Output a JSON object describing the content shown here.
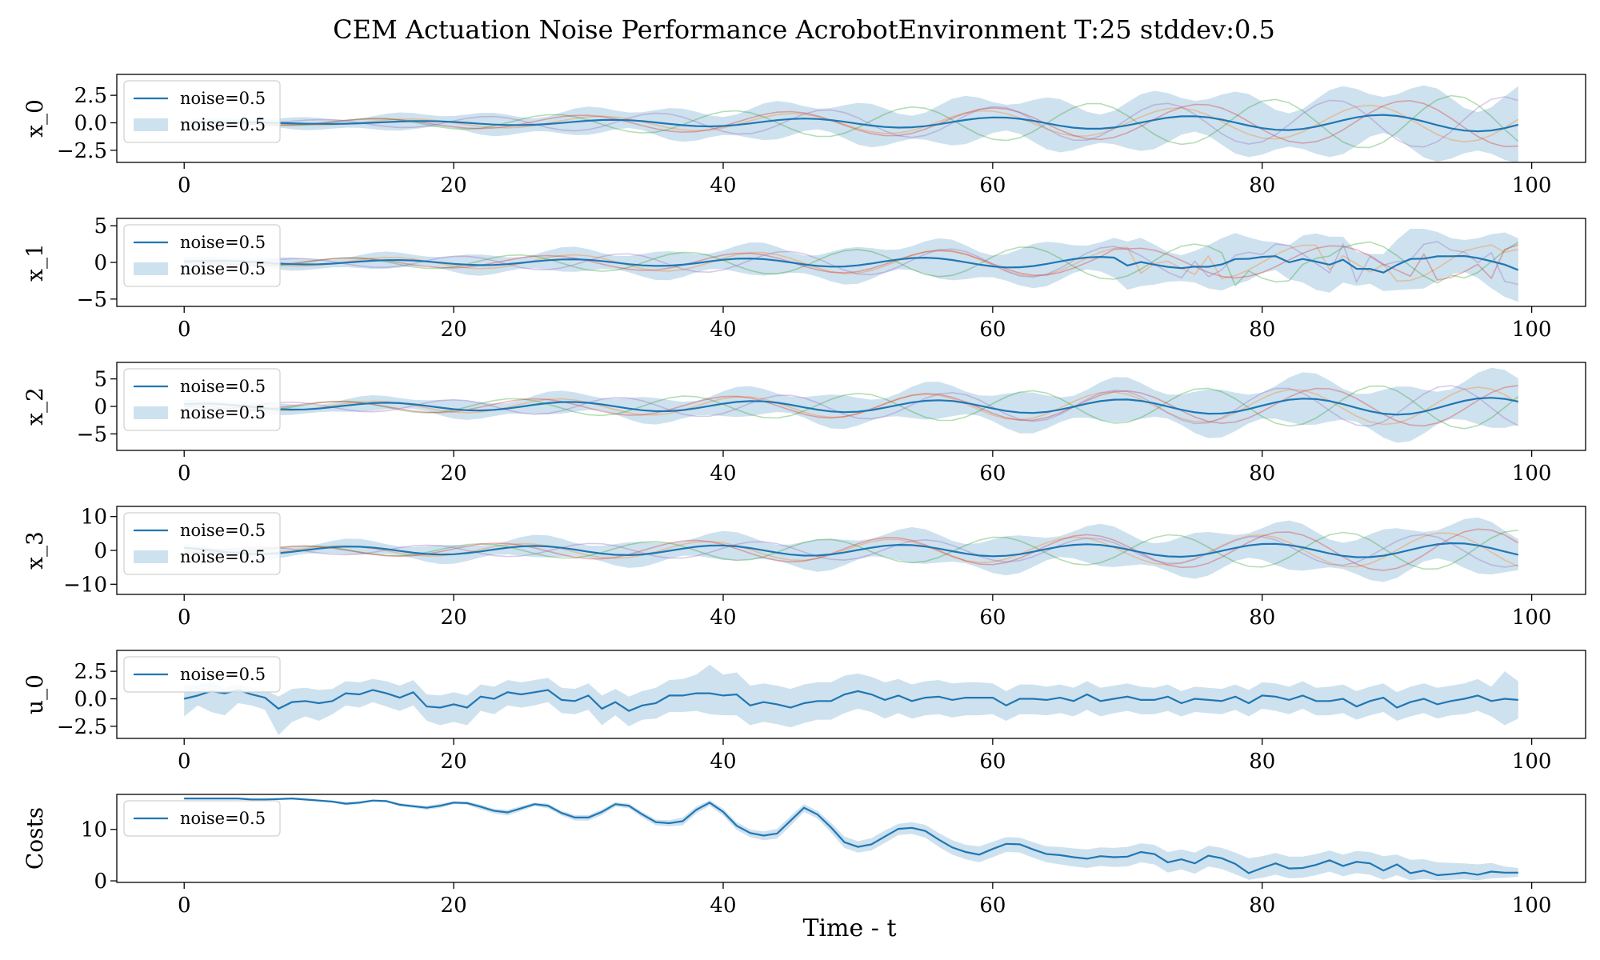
{
  "chart_data": {
    "title": "CEM Actuation Noise Performance AcrobotEnvironment T:25 stddev:0.5",
    "xlabel": "Time - t",
    "xlim": [
      -5,
      104
    ],
    "xticks": [
      0,
      20,
      40,
      60,
      80,
      100
    ],
    "band_color": "#a6c8e0",
    "mean_color": "#1f77b4",
    "panels": [
      {
        "type": "line",
        "ylabel": "x_0",
        "ylim": [
          -3.6,
          4.4
        ],
        "yticks": [
          2.5,
          0.0,
          -2.5
        ],
        "ytick_labels": [
          "2.5",
          "0.0",
          "−2.5"
        ],
        "legend": {
          "line": "noise=0.5",
          "band": "noise=0.5"
        },
        "mean_amp": [
          0.02,
          0.8
        ],
        "mean_freq": 0.44,
        "mean_phase": 0.2,
        "band_width": [
          0.3,
          3.6
        ],
        "traces": [
          {
            "color": "#ff7f0e",
            "amp": [
              0.05,
              1.8
            ],
            "freq": 0.44,
            "phase": 0.6
          },
          {
            "color": "#2ca02c",
            "amp": [
              0.05,
              2.6
            ],
            "freq": 0.47,
            "phase": 1.3
          },
          {
            "color": "#d62728",
            "amp": [
              0.05,
              2.2
            ],
            "freq": 0.41,
            "phase": 2.1
          },
          {
            "color": "#9467bd",
            "amp": [
              0.05,
              2.4
            ],
            "freq": 0.5,
            "phase": 2.9
          }
        ]
      },
      {
        "type": "line",
        "ylabel": "x_1",
        "ylim": [
          -6,
          6
        ],
        "yticks": [
          5,
          0,
          -5
        ],
        "ytick_labels": [
          "5",
          "0",
          "−5"
        ],
        "legend": {
          "line": "noise=0.5",
          "band": "noise=0.5"
        },
        "mean_amp": [
          0.2,
          1.0
        ],
        "mean_freq": 0.48,
        "mean_phase": 0.4,
        "band_width": [
          0.6,
          4.5
        ],
        "jagged_after": 68,
        "traces": [
          {
            "color": "#ff7f0e",
            "amp": [
              0.3,
              2.8
            ],
            "freq": 0.46,
            "phase": 0.9
          },
          {
            "color": "#2ca02c",
            "amp": [
              0.3,
              3.2
            ],
            "freq": 0.5,
            "phase": 1.8
          },
          {
            "color": "#d62728",
            "amp": [
              0.3,
              2.6
            ],
            "freq": 0.43,
            "phase": 2.6
          },
          {
            "color": "#9467bd",
            "amp": [
              0.3,
              3.0
            ],
            "freq": 0.52,
            "phase": 3.5
          }
        ]
      },
      {
        "type": "line",
        "ylabel": "x_2",
        "ylim": [
          -8,
          8
        ],
        "yticks": [
          5,
          0,
          -5
        ],
        "ytick_labels": [
          "5",
          "0",
          "−5"
        ],
        "legend": {
          "line": "noise=0.5",
          "band": "noise=0.5"
        },
        "mean_amp": [
          0.5,
          1.6
        ],
        "mean_freq": 0.46,
        "mean_phase": 1.0,
        "band_width": [
          0.8,
          5.6
        ],
        "traces": [
          {
            "color": "#ff7f0e",
            "amp": [
              0.5,
              3.6
            ],
            "freq": 0.46,
            "phase": 1.4
          },
          {
            "color": "#2ca02c",
            "amp": [
              0.5,
              4.2
            ],
            "freq": 0.49,
            "phase": 2.2
          },
          {
            "color": "#d62728",
            "amp": [
              0.5,
              3.8
            ],
            "freq": 0.43,
            "phase": 3.0
          },
          {
            "color": "#9467bd",
            "amp": [
              0.5,
              4.0
            ],
            "freq": 0.51,
            "phase": 4.0
          }
        ]
      },
      {
        "type": "line",
        "ylabel": "x_3",
        "ylim": [
          -13,
          13
        ],
        "yticks": [
          10,
          0,
          -10
        ],
        "ytick_labels": [
          "10",
          "0",
          "−10"
        ],
        "legend": {
          "line": "noise=0.5",
          "band": "noise=0.5"
        },
        "mean_amp": [
          1.0,
          2.2
        ],
        "mean_freq": 0.46,
        "mean_phase": 2.2,
        "band_width": [
          1.5,
          8.5
        ],
        "traces": [
          {
            "color": "#ff7f0e",
            "amp": [
              0.8,
              5.5
            ],
            "freq": 0.46,
            "phase": 2.6
          },
          {
            "color": "#2ca02c",
            "amp": [
              0.8,
              6.0
            ],
            "freq": 0.49,
            "phase": 3.4
          },
          {
            "color": "#d62728",
            "amp": [
              0.8,
              6.5
            ],
            "freq": 0.43,
            "phase": 4.2
          },
          {
            "color": "#9467bd",
            "amp": [
              0.8,
              5.0
            ],
            "freq": 0.51,
            "phase": 5.0
          }
        ]
      },
      {
        "type": "line",
        "ylabel": "u_0",
        "ylim": [
          -3.6,
          4.4
        ],
        "yticks": [
          2.5,
          0.0,
          -2.5
        ],
        "ytick_labels": [
          "2.5",
          "0.0",
          "−2.5"
        ],
        "legend": {
          "line": "noise=0.5"
        },
        "x": [
          0,
          1,
          2,
          3,
          4,
          5,
          6,
          7,
          8,
          9,
          10,
          11,
          12,
          13,
          14,
          15,
          16,
          17,
          18,
          19,
          20,
          21,
          22,
          23,
          24,
          25,
          26,
          27,
          28,
          29,
          30,
          31,
          32,
          33,
          34,
          35,
          36,
          37,
          38,
          39,
          40,
          41,
          42,
          43,
          44,
          45,
          46,
          47,
          48,
          49,
          50,
          51,
          52,
          53,
          54,
          55,
          56,
          57,
          58,
          59,
          60,
          61,
          62,
          63,
          64,
          65,
          66,
          67,
          68,
          69,
          70,
          71,
          72,
          73,
          74,
          75,
          76,
          77,
          78,
          79,
          80,
          81,
          82,
          83,
          84,
          85,
          86,
          87,
          88,
          89,
          90,
          91,
          92,
          93,
          94,
          95,
          96,
          97,
          98,
          99
        ],
        "mean": [
          0.0,
          0.3,
          0.7,
          0.5,
          0.8,
          0.4,
          0.1,
          -0.9,
          -0.3,
          -0.2,
          -0.4,
          -0.2,
          0.5,
          0.4,
          0.8,
          0.5,
          0.1,
          0.6,
          -0.7,
          -0.8,
          -0.5,
          -0.8,
          0.2,
          0.0,
          0.6,
          0.4,
          0.6,
          0.8,
          -0.1,
          -0.2,
          0.3,
          -0.9,
          -0.3,
          -1.1,
          -0.6,
          -0.4,
          0.3,
          0.3,
          0.5,
          0.5,
          0.3,
          0.4,
          -0.6,
          -0.3,
          -0.5,
          -0.8,
          -0.4,
          -0.2,
          -0.2,
          0.4,
          0.7,
          0.4,
          -0.1,
          0.3,
          -0.2,
          0.1,
          0.2,
          -0.1,
          0.1,
          0.1,
          0.1,
          -0.6,
          0.0,
          0.0,
          -0.1,
          0.1,
          -0.2,
          0.4,
          -0.2,
          0.0,
          0.2,
          -0.1,
          -0.1,
          0.2,
          -0.4,
          0.0,
          -0.1,
          -0.2,
          0.2,
          -0.4,
          0.3,
          0.2,
          -0.1,
          0.3,
          -0.2,
          -0.2,
          0.0,
          -0.7,
          -0.2,
          0.1,
          -0.8,
          -0.3,
          0.0,
          -0.5,
          -0.2,
          0.0,
          0.3,
          -0.2,
          0.0,
          -0.1
        ],
        "upper": [
          1.2,
          1.3,
          1.5,
          1.0,
          1.3,
          1.0,
          0.8,
          0.2,
          0.9,
          1.0,
          0.8,
          0.9,
          1.6,
          1.5,
          1.8,
          1.6,
          1.2,
          1.7,
          0.4,
          0.3,
          0.6,
          0.3,
          1.3,
          1.1,
          1.7,
          1.5,
          1.7,
          1.9,
          1.0,
          0.9,
          1.4,
          0.3,
          0.9,
          0.2,
          0.7,
          1.0,
          1.7,
          1.8,
          2.2,
          3.1,
          2.2,
          2.4,
          1.2,
          1.4,
          1.2,
          0.9,
          1.3,
          1.5,
          1.5,
          2.1,
          2.3,
          2.0,
          1.5,
          1.8,
          1.3,
          1.6,
          1.7,
          1.4,
          1.5,
          1.5,
          1.4,
          0.7,
          1.3,
          1.3,
          1.1,
          1.3,
          1.0,
          1.6,
          1.0,
          1.2,
          1.4,
          1.1,
          1.0,
          1.3,
          0.7,
          1.1,
          1.0,
          0.9,
          1.3,
          0.8,
          1.5,
          1.4,
          1.1,
          1.6,
          1.0,
          1.1,
          1.3,
          0.7,
          1.1,
          1.4,
          0.6,
          1.1,
          1.4,
          1.0,
          1.2,
          1.4,
          1.8,
          1.1,
          2.5,
          1.6
        ],
        "lower": [
          -1.6,
          -0.6,
          -1.2,
          -1.5,
          -0.4,
          -0.6,
          -1.0,
          -3.3,
          -2.1,
          -1.6,
          -2.0,
          -1.4,
          -0.6,
          -0.8,
          -0.3,
          -0.7,
          -1.1,
          -0.6,
          -2.0,
          -2.4,
          -2.1,
          -2.4,
          -1.1,
          -1.4,
          -0.6,
          -0.8,
          -0.6,
          -0.3,
          -1.3,
          -1.4,
          -1.0,
          -2.4,
          -1.5,
          -2.5,
          -1.9,
          -1.8,
          -1.2,
          -1.2,
          -1.1,
          -1.4,
          -1.5,
          -1.5,
          -2.4,
          -2.1,
          -2.3,
          -2.6,
          -2.2,
          -1.9,
          -1.9,
          -1.3,
          -0.9,
          -1.2,
          -1.8,
          -1.3,
          -1.8,
          -1.5,
          -1.4,
          -1.7,
          -1.5,
          -1.5,
          -1.4,
          -2.0,
          -1.4,
          -1.4,
          -1.5,
          -1.3,
          -1.6,
          -1.0,
          -1.6,
          -1.3,
          -1.1,
          -1.4,
          -1.4,
          -1.1,
          -1.6,
          -1.2,
          -1.3,
          -1.4,
          -1.0,
          -1.6,
          -0.9,
          -1.1,
          -1.4,
          -0.9,
          -1.5,
          -1.5,
          -1.3,
          -1.9,
          -1.5,
          -1.2,
          -2.0,
          -1.6,
          -1.3,
          -1.8,
          -1.5,
          -1.4,
          -1.1,
          -1.6,
          -2.4,
          -1.8
        ]
      },
      {
        "type": "line",
        "ylabel": "Costs",
        "ylim": [
          -0.3,
          16.8
        ],
        "yticks": [
          10,
          0
        ],
        "ytick_labels": [
          "10",
          "0"
        ],
        "legend": {
          "line": "noise=0.5"
        },
        "x": [
          0,
          1,
          2,
          3,
          4,
          5,
          6,
          7,
          8,
          9,
          10,
          11,
          12,
          13,
          14,
          15,
          16,
          17,
          18,
          19,
          20,
          21,
          22,
          23,
          24,
          25,
          26,
          27,
          28,
          29,
          30,
          31,
          32,
          33,
          34,
          35,
          36,
          37,
          38,
          39,
          40,
          41,
          42,
          43,
          44,
          45,
          46,
          47,
          48,
          49,
          50,
          51,
          52,
          53,
          54,
          55,
          56,
          57,
          58,
          59,
          60,
          61,
          62,
          63,
          64,
          65,
          66,
          67,
          68,
          69,
          70,
          71,
          72,
          73,
          74,
          75,
          76,
          77,
          78,
          79,
          80,
          81,
          82,
          83,
          84,
          85,
          86,
          87,
          88,
          89,
          90,
          91,
          92,
          93,
          94,
          95,
          96,
          97,
          98,
          99
        ],
        "mean": [
          16.0,
          16.0,
          16.0,
          16.0,
          16.0,
          15.8,
          15.8,
          15.9,
          16.0,
          15.8,
          15.6,
          15.4,
          15.0,
          15.2,
          15.6,
          15.5,
          14.8,
          14.5,
          14.2,
          14.6,
          15.2,
          15.1,
          14.4,
          13.6,
          13.3,
          14.1,
          14.9,
          14.6,
          13.2,
          12.3,
          12.3,
          13.4,
          14.9,
          14.6,
          12.9,
          11.4,
          11.2,
          11.6,
          13.8,
          15.2,
          13.4,
          10.7,
          9.3,
          8.8,
          9.2,
          11.7,
          14.2,
          12.9,
          10.4,
          7.5,
          6.6,
          7.1,
          8.6,
          10.1,
          10.3,
          9.7,
          8.0,
          6.5,
          5.6,
          5.1,
          6.2,
          7.2,
          7.1,
          6.1,
          5.2,
          5.0,
          4.6,
          4.3,
          4.8,
          4.6,
          4.7,
          5.6,
          5.2,
          3.6,
          4.2,
          3.4,
          4.9,
          4.4,
          3.3,
          1.5,
          2.5,
          3.4,
          2.4,
          2.5,
          3.1,
          4.0,
          2.9,
          3.7,
          3.4,
          2.0,
          3.2,
          1.5,
          2.0,
          1.1,
          1.3,
          1.6,
          1.2,
          1.8,
          1.6,
          1.6
        ],
        "upper": [
          16.2,
          16.2,
          16.2,
          16.2,
          16.2,
          16.0,
          16.0,
          16.1,
          16.2,
          16.0,
          15.8,
          15.6,
          15.3,
          15.5,
          15.8,
          15.7,
          15.1,
          14.8,
          14.6,
          15.0,
          15.5,
          15.4,
          14.8,
          14.0,
          13.8,
          14.5,
          15.2,
          15.0,
          13.6,
          12.8,
          12.8,
          13.9,
          15.3,
          15.0,
          13.4,
          11.9,
          11.8,
          12.3,
          14.4,
          15.7,
          14.0,
          11.4,
          10.0,
          9.6,
          10.1,
          12.6,
          14.9,
          13.6,
          11.3,
          8.6,
          7.7,
          8.3,
          9.8,
          11.1,
          11.4,
          10.9,
          9.3,
          7.9,
          7.0,
          6.7,
          7.6,
          8.5,
          8.4,
          7.5,
          6.7,
          6.6,
          6.3,
          6.1,
          6.5,
          6.4,
          6.6,
          7.3,
          7.0,
          5.6,
          6.1,
          5.5,
          6.8,
          6.4,
          5.5,
          4.4,
          4.8,
          5.4,
          4.7,
          4.7,
          5.2,
          5.9,
          5.1,
          5.8,
          5.6,
          4.8,
          5.1,
          4.1,
          4.2,
          3.6,
          3.5,
          3.4,
          3.2,
          3.5,
          2.8,
          2.5
        ],
        "lower": [
          15.8,
          15.8,
          15.8,
          15.8,
          15.8,
          15.6,
          15.6,
          15.7,
          15.8,
          15.6,
          15.4,
          15.2,
          14.7,
          14.9,
          15.4,
          15.3,
          14.5,
          14.2,
          13.8,
          14.2,
          14.9,
          14.8,
          13.9,
          13.1,
          12.7,
          13.6,
          14.5,
          14.1,
          12.7,
          11.7,
          11.7,
          12.8,
          14.4,
          14.1,
          12.3,
          10.8,
          10.6,
          10.8,
          13.1,
          14.6,
          12.7,
          9.9,
          8.5,
          7.9,
          8.2,
          10.7,
          13.4,
          12.1,
          9.4,
          6.4,
          5.5,
          5.9,
          7.4,
          8.9,
          9.1,
          8.4,
          6.6,
          5.1,
          4.2,
          3.6,
          4.6,
          5.6,
          5.5,
          4.5,
          3.6,
          3.2,
          2.8,
          2.5,
          2.9,
          2.7,
          2.8,
          3.6,
          3.2,
          1.6,
          2.2,
          1.4,
          2.8,
          2.3,
          1.3,
          0.2,
          0.6,
          1.2,
          0.5,
          0.6,
          1.1,
          1.8,
          0.9,
          1.5,
          1.2,
          0.2,
          1.1,
          0.1,
          0.4,
          0.1,
          0.2,
          0.3,
          0.1,
          0.5,
          0.6,
          0.8
        ]
      }
    ]
  }
}
